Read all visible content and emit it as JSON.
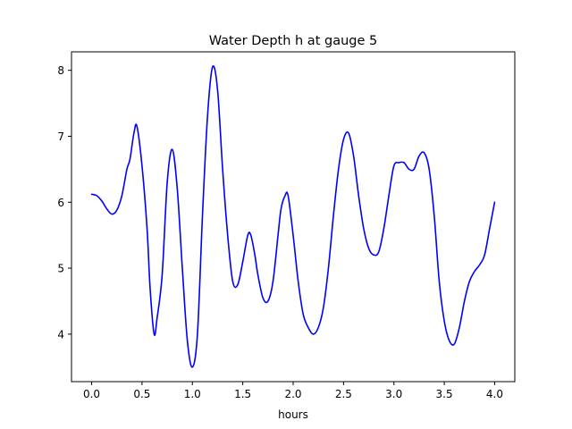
{
  "chart_data": {
    "type": "line",
    "title": "Water Depth h at gauge 5",
    "xlabel": "hours",
    "ylabel": "",
    "xlim": [
      -0.2,
      4.2
    ],
    "ylim": [
      3.28,
      8.28
    ],
    "x_ticks": [
      0.0,
      0.5,
      1.0,
      1.5,
      2.0,
      2.5,
      3.0,
      3.5,
      4.0
    ],
    "x_tick_labels": [
      "0.0",
      "0.5",
      "1.0",
      "1.5",
      "2.0",
      "2.5",
      "3.0",
      "3.5",
      "4.0"
    ],
    "y_ticks": [
      4,
      5,
      6,
      7,
      8
    ],
    "y_tick_labels": [
      "4",
      "5",
      "6",
      "7",
      "8"
    ],
    "grid": false,
    "legend": "none",
    "series": [
      {
        "color": "#0000ff",
        "x": [
          0.0,
          0.05,
          0.1,
          0.15,
          0.2,
          0.25,
          0.3,
          0.35,
          0.38,
          0.42,
          0.45,
          0.5,
          0.55,
          0.58,
          0.62,
          0.65,
          0.7,
          0.75,
          0.8,
          0.85,
          0.9,
          0.95,
          1.0,
          1.05,
          1.1,
          1.15,
          1.2,
          1.25,
          1.3,
          1.35,
          1.4,
          1.45,
          1.5,
          1.55,
          1.58,
          1.62,
          1.65,
          1.7,
          1.75,
          1.8,
          1.85,
          1.88,
          1.92,
          1.95,
          2.0,
          2.05,
          2.1,
          2.15,
          2.2,
          2.25,
          2.3,
          2.35,
          2.4,
          2.45,
          2.5,
          2.55,
          2.6,
          2.65,
          2.7,
          2.75,
          2.8,
          2.85,
          2.9,
          2.95,
          3.0,
          3.05,
          3.1,
          3.15,
          3.2,
          3.25,
          3.3,
          3.35,
          3.4,
          3.45,
          3.5,
          3.55,
          3.6,
          3.65,
          3.7,
          3.75,
          3.8,
          3.85,
          3.9,
          3.95,
          4.0
        ],
        "y": [
          6.12,
          6.1,
          6.02,
          5.9,
          5.82,
          5.88,
          6.1,
          6.5,
          6.65,
          7.05,
          7.15,
          6.55,
          5.6,
          4.7,
          4.0,
          4.25,
          4.9,
          6.3,
          6.8,
          6.2,
          5.0,
          3.9,
          3.5,
          4.0,
          5.8,
          7.3,
          8.05,
          7.7,
          6.5,
          5.5,
          4.8,
          4.75,
          5.1,
          5.5,
          5.5,
          5.2,
          4.9,
          4.55,
          4.5,
          4.8,
          5.5,
          5.9,
          6.1,
          6.1,
          5.5,
          4.8,
          4.3,
          4.1,
          4.0,
          4.1,
          4.4,
          5.0,
          5.8,
          6.5,
          6.95,
          7.05,
          6.7,
          6.1,
          5.6,
          5.3,
          5.2,
          5.25,
          5.6,
          6.1,
          6.55,
          6.6,
          6.6,
          6.5,
          6.5,
          6.7,
          6.75,
          6.5,
          5.8,
          4.8,
          4.2,
          3.9,
          3.85,
          4.1,
          4.5,
          4.8,
          4.95,
          5.05,
          5.2,
          5.6,
          6.0
        ]
      }
    ]
  }
}
